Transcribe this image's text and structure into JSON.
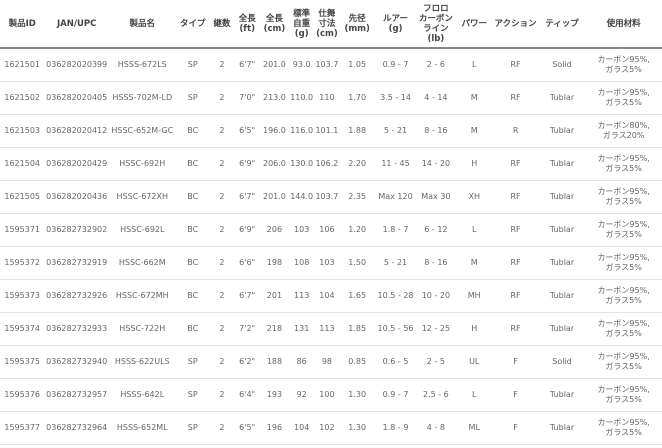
{
  "headers": [
    "製品ID",
    "JAN/UPC",
    "製品名",
    "タイプ",
    "継数",
    "全長\n(ft)",
    "全長\n(cm)",
    "標準\n自重\n(g)",
    "仕舞\n寸法\n(cm)",
    "先径\n(mm)",
    "ルアー\n(g)",
    "フロロ\nカーボン\nライン\n(lb)",
    "パワー",
    "アクション",
    "ティップ",
    "使用材料"
  ],
  "rows": [
    [
      "1621501",
      "036282020399",
      "HSSS-672LS",
      "SP",
      "2",
      "6'7\"",
      "201.0",
      "93.0",
      "103.7",
      "1.05",
      "0.9 - 7",
      "2 - 6",
      "L",
      "RF",
      "Solid",
      "カーボン95%,\nガラス5%"
    ],
    [
      "1621502",
      "036282020405",
      "HSSS-702M-LD",
      "SP",
      "2",
      "7'0\"",
      "213.0",
      "110.0",
      "110",
      "1.70",
      "3.5 - 14",
      "4 - 14",
      "M",
      "RF",
      "Tublar",
      "カーボン95%,\nガラス5%"
    ],
    [
      "1621503",
      "036282020412",
      "HSSC-652M-GC",
      "BC",
      "2",
      "6'5\"",
      "196.0",
      "116.0",
      "101.1",
      "1.88",
      "5 - 21",
      "8 - 16",
      "M",
      "R",
      "Tublar",
      "カーボン80%,\nガラス20%"
    ],
    [
      "1621504",
      "036282020429",
      "HSSC-692H",
      "BC",
      "2",
      "6'9\"",
      "206.0",
      "130.0",
      "106.2",
      "2.20",
      "11 - 45",
      "14 - 20",
      "H",
      "RF",
      "Tublar",
      "カーボン95%,\nガラス5%"
    ],
    [
      "1621505",
      "036282020436",
      "HSSC-672XH",
      "BC",
      "2",
      "6'7\"",
      "201.0",
      "144.0",
      "103.7",
      "2.35",
      "Max 120",
      "Max 30",
      "XH",
      "RF",
      "Tublar",
      "カーボン95%,\nガラス5%"
    ],
    [
      "1595371",
      "036282732902",
      "HSSC-692L",
      "BC",
      "2",
      "6'9\"",
      "206",
      "103",
      "106",
      "1.20",
      "1.8 - 7",
      "6 - 12",
      "L",
      "RF",
      "Tublar",
      "カーボン95%,\nガラス5%"
    ],
    [
      "1595372",
      "036282732919",
      "HSSC-662M",
      "BC",
      "2",
      "6'6\"",
      "198",
      "108",
      "103",
      "1.50",
      "5 - 21",
      "8 - 16",
      "M",
      "RF",
      "Tublar",
      "カーボン95%,\nガラス5%"
    ],
    [
      "1595373",
      "036282732926",
      "HSSC-672MH",
      "BC",
      "2",
      "6'7\"",
      "201",
      "113",
      "104",
      "1.65",
      "10.5 - 28",
      "10 - 20",
      "MH",
      "RF",
      "Tublar",
      "カーボン95%,\nガラス5%"
    ],
    [
      "1595374",
      "036282732933",
      "HSSC-722H",
      "BC",
      "2",
      "7'2\"",
      "218",
      "131",
      "113",
      "1.85",
      "10.5 - 56",
      "12 - 25",
      "H",
      "RF",
      "Tublar",
      "カーボン95%,\nガラス5%"
    ],
    [
      "1595375",
      "036282732940",
      "HSSS-622ULS",
      "SP",
      "2",
      "6'2\"",
      "188",
      "86",
      "98",
      "0.85",
      "0.6 - 5",
      "2 - 5",
      "UL",
      "F",
      "Solid",
      "カーボン95%,\nガラス5%"
    ],
    [
      "1595376",
      "036282732957",
      "HSSS-642L",
      "SP",
      "2",
      "6'4\"",
      "193",
      "92",
      "100",
      "1.30",
      "0.9 - 7",
      "2.5 - 6",
      "L",
      "F",
      "Tublar",
      "カーボン95%,\nガラス5%"
    ],
    [
      "1595377",
      "036282732964",
      "HSSS-652ML",
      "SP",
      "2",
      "6'5\"",
      "196",
      "104",
      "102",
      "1.30",
      "1.8 - 9",
      "4 - 8",
      "ML",
      "F",
      "Tublar",
      "カーボン95%,\nガラス5%"
    ]
  ]
}
